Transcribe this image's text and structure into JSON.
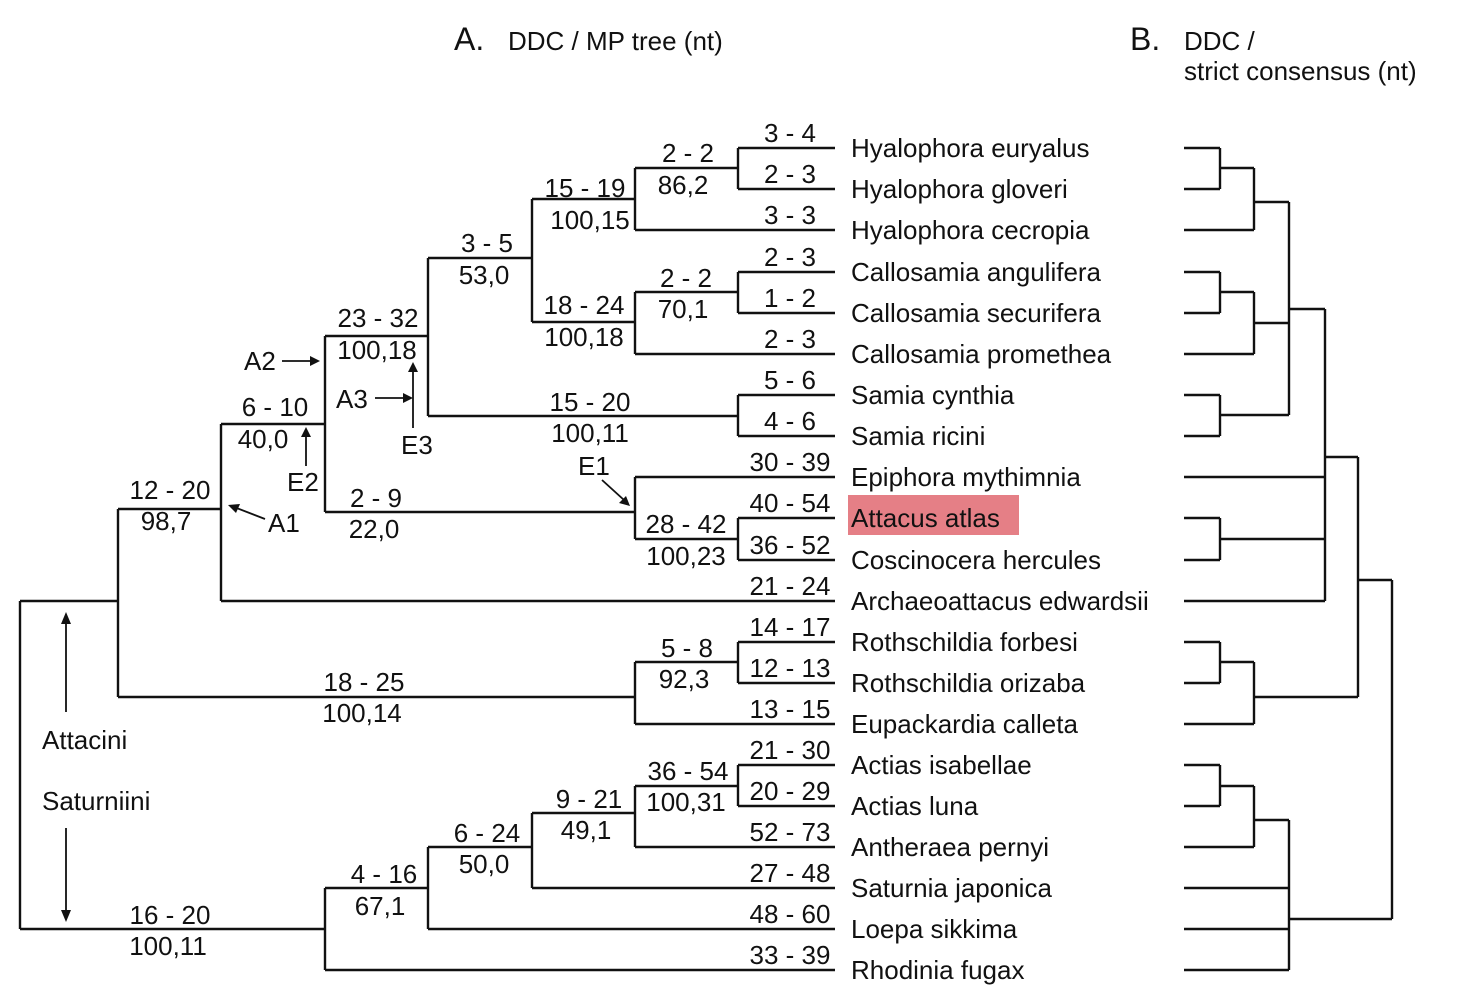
{
  "figure": {
    "panel_a": {
      "letter": "A.",
      "title": "DDC / MP tree (nt)"
    },
    "panel_b": {
      "letter": "B.",
      "title_line1": "DDC /",
      "title_line2": "strict consensus (nt)"
    },
    "highlight_color": "#e57f86"
  },
  "taxa": [
    "Hyalophora euryalus",
    "Hyalophora gloveri",
    "Hyalophora cecropia",
    "Callosamia angulifera",
    "Callosamia securifera",
    "Callosamia promethea",
    "Samia cynthia",
    "Samia ricini",
    "Epiphora mythimnia",
    "Attacus atlas",
    "Coscinocera hercules",
    "Archaeoattacus edwardsii",
    "Rothschildia forbesi",
    "Rothschildia orizaba",
    "Eupackardia calleta",
    "Actias isabellae",
    "Actias luna",
    "Antheraea pernyi",
    "Saturnia japonica",
    "Loepa sikkima",
    "Rhodinia fugax"
  ],
  "terminal_branch_labels": [
    "3 - 4",
    "2 - 3",
    "3 - 3",
    "2 - 3",
    "1 - 2",
    "2 - 3",
    "5 - 6",
    "4 - 6",
    "30 - 39",
    "40 - 54",
    "36 - 52",
    "21 - 24",
    "14 - 17",
    "12 - 13",
    "13 - 15",
    "21 - 30",
    "20 - 29",
    "52 - 73",
    "27 - 48",
    "48 - 60",
    "33 - 39"
  ],
  "internal_branch_labels": {
    "hyal_gl": {
      "top": "2 - 2",
      "bottom": "86,2"
    },
    "hyal": {
      "top": "15 - 19",
      "bottom": "100,15"
    },
    "hyal_callo": {
      "top": "3 - 5",
      "bottom": "53,0"
    },
    "callo_as": {
      "top": "2 - 2",
      "bottom": "70,1"
    },
    "callo": {
      "top": "18 - 24",
      "bottom": "100,18"
    },
    "samia": {
      "top": "15 - 20",
      "bottom": "100,11"
    },
    "hcs": {
      "top": "23 - 32",
      "bottom": "100,18"
    },
    "eac_branch": {
      "top": "2 - 9",
      "bottom": "22,0"
    },
    "eac": {
      "top": "28 - 42",
      "bottom": "100,23"
    },
    "n610": {
      "top": "6 - 10",
      "bottom": "40,0"
    },
    "attacini_core": {
      "top": "12 - 20",
      "bottom": "98,7"
    },
    "roth_branch": {
      "top": "18 - 25",
      "bottom": "100,14"
    },
    "roth": {
      "top": "5 - 8",
      "bottom": "92,3"
    },
    "actias": {
      "top": "36 - 54",
      "bottom": "100,31"
    },
    "act_ant": {
      "top": "9 - 21",
      "bottom": "49,1"
    },
    "sat_core": {
      "top": "6 - 24",
      "bottom": "50,0"
    },
    "loepa_node": {
      "top": "4 - 16",
      "bottom": "67,1"
    },
    "saturniini": {
      "top": "16 - 20",
      "bottom": "100,11"
    }
  },
  "annotations": {
    "a1": "A1",
    "a2": "A2",
    "a3": "A3",
    "e1": "E1",
    "e2": "E2",
    "e3": "E3",
    "attacini": "Attacini",
    "saturniini": "Saturniini"
  }
}
